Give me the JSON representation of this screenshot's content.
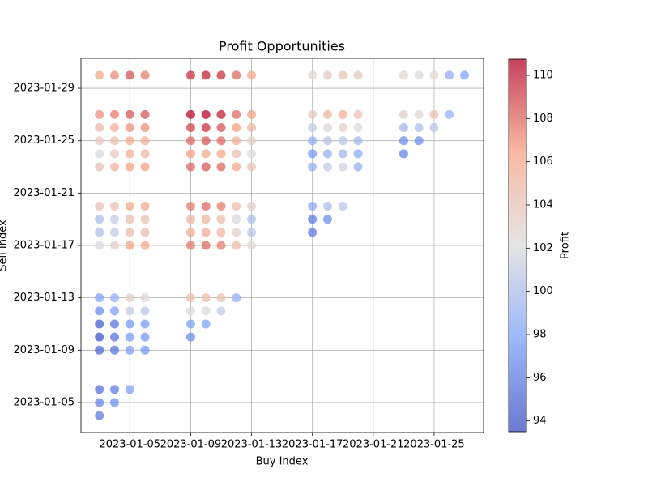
{
  "chart_data": {
    "type": "scatter",
    "title": "Profit Opportunities",
    "x_label": "Buy Index",
    "y_label": "Sell Index",
    "x": [
      "2023-01-03",
      "2023-01-03",
      "2023-01-03",
      "2023-01-03",
      "2023-01-03",
      "2023-01-03",
      "2023-01-03",
      "2023-01-03",
      "2023-01-03",
      "2023-01-03",
      "2023-01-03",
      "2023-01-03",
      "2023-01-03",
      "2023-01-03",
      "2023-01-03",
      "2023-01-03",
      "2023-01-03",
      "2023-01-03",
      "2023-01-04",
      "2023-01-04",
      "2023-01-04",
      "2023-01-04",
      "2023-01-04",
      "2023-01-04",
      "2023-01-04",
      "2023-01-04",
      "2023-01-04",
      "2023-01-04",
      "2023-01-04",
      "2023-01-04",
      "2023-01-04",
      "2023-01-04",
      "2023-01-04",
      "2023-01-04",
      "2023-01-04",
      "2023-01-05",
      "2023-01-05",
      "2023-01-05",
      "2023-01-05",
      "2023-01-05",
      "2023-01-05",
      "2023-01-05",
      "2023-01-05",
      "2023-01-05",
      "2023-01-05",
      "2023-01-05",
      "2023-01-05",
      "2023-01-05",
      "2023-01-05",
      "2023-01-05",
      "2023-01-05",
      "2023-01-06",
      "2023-01-06",
      "2023-01-06",
      "2023-01-06",
      "2023-01-06",
      "2023-01-06",
      "2023-01-06",
      "2023-01-06",
      "2023-01-06",
      "2023-01-06",
      "2023-01-06",
      "2023-01-06",
      "2023-01-06",
      "2023-01-06",
      "2023-01-06",
      "2023-01-09",
      "2023-01-09",
      "2023-01-09",
      "2023-01-09",
      "2023-01-09",
      "2023-01-09",
      "2023-01-09",
      "2023-01-09",
      "2023-01-09",
      "2023-01-09",
      "2023-01-09",
      "2023-01-09",
      "2023-01-09",
      "2023-01-09",
      "2023-01-10",
      "2023-01-10",
      "2023-01-10",
      "2023-01-10",
      "2023-01-10",
      "2023-01-10",
      "2023-01-10",
      "2023-01-10",
      "2023-01-10",
      "2023-01-10",
      "2023-01-10",
      "2023-01-10",
      "2023-01-10",
      "2023-01-11",
      "2023-01-11",
      "2023-01-11",
      "2023-01-11",
      "2023-01-11",
      "2023-01-11",
      "2023-01-11",
      "2023-01-11",
      "2023-01-11",
      "2023-01-11",
      "2023-01-11",
      "2023-01-11",
      "2023-01-12",
      "2023-01-12",
      "2023-01-12",
      "2023-01-12",
      "2023-01-12",
      "2023-01-12",
      "2023-01-12",
      "2023-01-12",
      "2023-01-12",
      "2023-01-12",
      "2023-01-12",
      "2023-01-13",
      "2023-01-13",
      "2023-01-13",
      "2023-01-13",
      "2023-01-13",
      "2023-01-13",
      "2023-01-13",
      "2023-01-13",
      "2023-01-13",
      "2023-01-13",
      "2023-01-17",
      "2023-01-17",
      "2023-01-17",
      "2023-01-17",
      "2023-01-17",
      "2023-01-17",
      "2023-01-17",
      "2023-01-17",
      "2023-01-17",
      "2023-01-18",
      "2023-01-18",
      "2023-01-18",
      "2023-01-18",
      "2023-01-18",
      "2023-01-18",
      "2023-01-18",
      "2023-01-18",
      "2023-01-19",
      "2023-01-19",
      "2023-01-19",
      "2023-01-19",
      "2023-01-19",
      "2023-01-19",
      "2023-01-19",
      "2023-01-20",
      "2023-01-20",
      "2023-01-20",
      "2023-01-20",
      "2023-01-20",
      "2023-01-20",
      "2023-01-23",
      "2023-01-23",
      "2023-01-23",
      "2023-01-23",
      "2023-01-23",
      "2023-01-24",
      "2023-01-24",
      "2023-01-24",
      "2023-01-24",
      "2023-01-25",
      "2023-01-25",
      "2023-01-25",
      "2023-01-26",
      "2023-01-26",
      "2023-01-27"
    ],
    "y": [
      "2023-01-30",
      "2023-01-27",
      "2023-01-26",
      "2023-01-25",
      "2023-01-24",
      "2023-01-23",
      "2023-01-20",
      "2023-01-19",
      "2023-01-18",
      "2023-01-17",
      "2023-01-13",
      "2023-01-12",
      "2023-01-11",
      "2023-01-10",
      "2023-01-09",
      "2023-01-06",
      "2023-01-05",
      "2023-01-04",
      "2023-01-30",
      "2023-01-27",
      "2023-01-26",
      "2023-01-25",
      "2023-01-24",
      "2023-01-23",
      "2023-01-20",
      "2023-01-19",
      "2023-01-18",
      "2023-01-17",
      "2023-01-13",
      "2023-01-12",
      "2023-01-11",
      "2023-01-10",
      "2023-01-09",
      "2023-01-06",
      "2023-01-05",
      "2023-01-30",
      "2023-01-27",
      "2023-01-26",
      "2023-01-25",
      "2023-01-24",
      "2023-01-23",
      "2023-01-20",
      "2023-01-19",
      "2023-01-18",
      "2023-01-17",
      "2023-01-13",
      "2023-01-12",
      "2023-01-11",
      "2023-01-10",
      "2023-01-09",
      "2023-01-06",
      "2023-01-30",
      "2023-01-27",
      "2023-01-26",
      "2023-01-25",
      "2023-01-24",
      "2023-01-23",
      "2023-01-20",
      "2023-01-19",
      "2023-01-18",
      "2023-01-17",
      "2023-01-13",
      "2023-01-12",
      "2023-01-11",
      "2023-01-10",
      "2023-01-09",
      "2023-01-30",
      "2023-01-27",
      "2023-01-26",
      "2023-01-25",
      "2023-01-24",
      "2023-01-23",
      "2023-01-20",
      "2023-01-19",
      "2023-01-18",
      "2023-01-17",
      "2023-01-13",
      "2023-01-12",
      "2023-01-11",
      "2023-01-10",
      "2023-01-30",
      "2023-01-27",
      "2023-01-26",
      "2023-01-25",
      "2023-01-24",
      "2023-01-23",
      "2023-01-20",
      "2023-01-19",
      "2023-01-18",
      "2023-01-17",
      "2023-01-13",
      "2023-01-12",
      "2023-01-11",
      "2023-01-30",
      "2023-01-27",
      "2023-01-26",
      "2023-01-25",
      "2023-01-24",
      "2023-01-23",
      "2023-01-20",
      "2023-01-19",
      "2023-01-18",
      "2023-01-17",
      "2023-01-13",
      "2023-01-12",
      "2023-01-30",
      "2023-01-27",
      "2023-01-26",
      "2023-01-25",
      "2023-01-24",
      "2023-01-23",
      "2023-01-20",
      "2023-01-19",
      "2023-01-18",
      "2023-01-17",
      "2023-01-13",
      "2023-01-30",
      "2023-01-27",
      "2023-01-26",
      "2023-01-25",
      "2023-01-24",
      "2023-01-23",
      "2023-01-20",
      "2023-01-19",
      "2023-01-18",
      "2023-01-17",
      "2023-01-30",
      "2023-01-27",
      "2023-01-26",
      "2023-01-25",
      "2023-01-24",
      "2023-01-23",
      "2023-01-20",
      "2023-01-19",
      "2023-01-18",
      "2023-01-30",
      "2023-01-27",
      "2023-01-26",
      "2023-01-25",
      "2023-01-24",
      "2023-01-23",
      "2023-01-20",
      "2023-01-19",
      "2023-01-30",
      "2023-01-27",
      "2023-01-26",
      "2023-01-25",
      "2023-01-24",
      "2023-01-23",
      "2023-01-20",
      "2023-01-30",
      "2023-01-27",
      "2023-01-26",
      "2023-01-25",
      "2023-01-24",
      "2023-01-23",
      "2023-01-30",
      "2023-01-27",
      "2023-01-26",
      "2023-01-25",
      "2023-01-24",
      "2023-01-30",
      "2023-01-27",
      "2023-01-26",
      "2023-01-25",
      "2023-01-30",
      "2023-01-27",
      "2023-01-26",
      "2023-01-30",
      "2023-01-27",
      "2023-01-30"
    ],
    "values": [
      106,
      107,
      105,
      103.5,
      102,
      104,
      104,
      100,
      100,
      102,
      98,
      97,
      94.5,
      94,
      95,
      95.5,
      96.5,
      96,
      107,
      107.5,
      105.5,
      104,
      103.5,
      105,
      104,
      101,
      101,
      103,
      99,
      98,
      95.5,
      95.5,
      95.5,
      96,
      97,
      108.5,
      108.5,
      107,
      106,
      105.5,
      106.5,
      106,
      104.5,
      104.5,
      106.5,
      103,
      101,
      97.5,
      97.5,
      98,
      98,
      107.5,
      108.5,
      107,
      105.5,
      105,
      106.5,
      106,
      104,
      104.5,
      106,
      102.5,
      100.5,
      97.5,
      97.5,
      97.5,
      109.5,
      110.5,
      109,
      108,
      106.5,
      108,
      107.5,
      105,
      105.5,
      107.5,
      104.5,
      102,
      98,
      97,
      110,
      110.7,
      109.5,
      108.5,
      106,
      108.5,
      108,
      105,
      105.5,
      108,
      104.5,
      102,
      98,
      109.5,
      110,
      108.5,
      108,
      106,
      108,
      107.5,
      104.5,
      105,
      107.5,
      104,
      101,
      108,
      108,
      106.5,
      105.5,
      104,
      106,
      104.5,
      102,
      103,
      104.5,
      99,
      106,
      106.5,
      105,
      103,
      102,
      104,
      103,
      100,
      100.5,
      102.5,
      102.5,
      103.5,
      101,
      99,
      97.5,
      99,
      98.5,
      96,
      96,
      103.5,
      105,
      102.5,
      100.5,
      99,
      101,
      100,
      97,
      104,
      105.5,
      103,
      100.5,
      99.5,
      101.5,
      100.5,
      103.5,
      104,
      102.5,
      99.5,
      98.5,
      99,
      102.5,
      103,
      99.5,
      97,
      96.5,
      102,
      102.5,
      100,
      97,
      102.5,
      104,
      100.5,
      99,
      99,
      98
    ],
    "xlim": [
      "2023-01-01T19:00:00Z",
      "2023-01-28T06:00:00Z"
    ],
    "xticks": [
      "2023-01-05",
      "2023-01-09",
      "2023-01-13",
      "2023-01-17",
      "2023-01-21",
      "2023-01-25"
    ],
    "ylim": [
      "2023-01-02T17:00:00Z",
      "2023-01-31T07:00:00Z"
    ],
    "yticks": [
      "2023-01-05",
      "2023-01-09",
      "2023-01-13",
      "2023-01-17",
      "2023-01-21",
      "2023-01-25",
      "2023-01-29"
    ],
    "grid": true,
    "colormap": "coolwarm",
    "colorbar": {
      "label": "Profit",
      "lim": [
        93.5,
        110.75
      ],
      "ticks": [
        94,
        96,
        98,
        100,
        102,
        104,
        106,
        108,
        110
      ]
    }
  }
}
